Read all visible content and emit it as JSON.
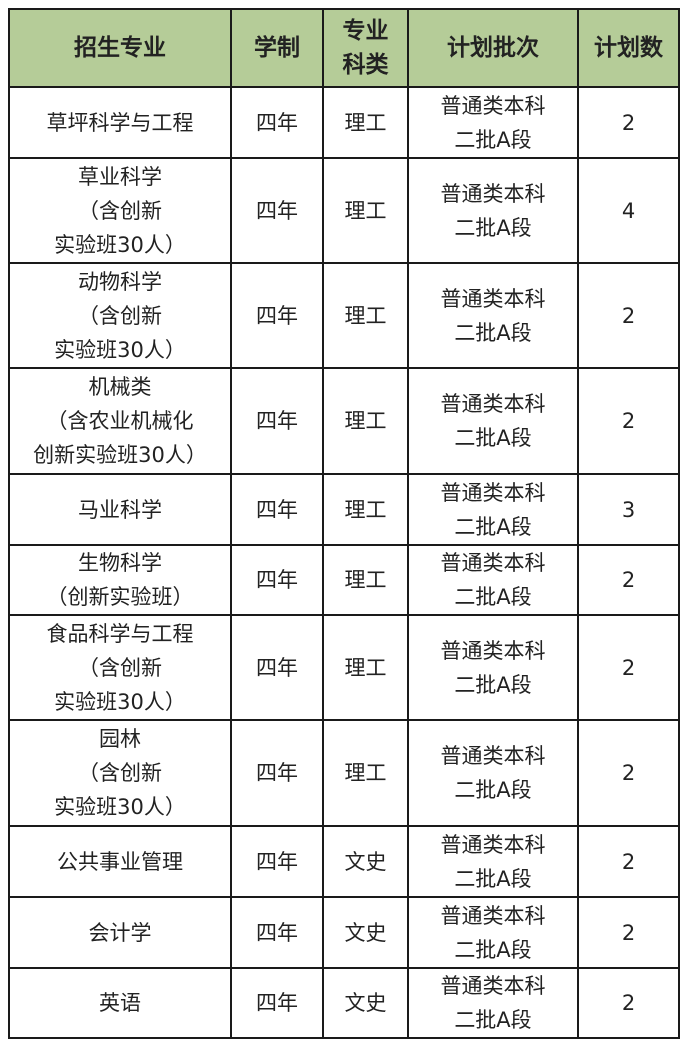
{
  "table": {
    "header_color": "#b5cc98",
    "headers": [
      "招生专业",
      "学制",
      "专业\n科类",
      "计划批次",
      "计划数"
    ],
    "rows": [
      [
        "草坪科学与工程",
        "四年",
        "理工",
        "普通类本科\n二批A段",
        "2"
      ],
      [
        "草业科学\n（含创新\n实验班30人）",
        "四年",
        "理工",
        "普通类本科\n二批A段",
        "4"
      ],
      [
        "动物科学\n（含创新\n实验班30人）",
        "四年",
        "理工",
        "普通类本科\n二批A段",
        "2"
      ],
      [
        "机械类\n（含农业机械化\n创新实验班30人）",
        "四年",
        "理工",
        "普通类本科\n二批A段",
        "2"
      ],
      [
        "马业科学",
        "四年",
        "理工",
        "普通类本科\n二批A段",
        "3"
      ],
      [
        "生物科学\n（创新实验班）",
        "四年",
        "理工",
        "普通类本科\n二批A段",
        "2"
      ],
      [
        "食品科学与工程\n（含创新\n实验班30人）",
        "四年",
        "理工",
        "普通类本科\n二批A段",
        "2"
      ],
      [
        "园林\n（含创新\n实验班30人）",
        "四年",
        "理工",
        "普通类本科\n二批A段",
        "2"
      ],
      [
        "公共事业管理",
        "四年",
        "文史",
        "普通类本科\n二批A段",
        "2"
      ],
      [
        "会计学",
        "四年",
        "文史",
        "普通类本科\n二批A段",
        "2"
      ],
      [
        "英语",
        "四年",
        "文史",
        "普通类本科\n二批A段",
        "2"
      ]
    ]
  }
}
